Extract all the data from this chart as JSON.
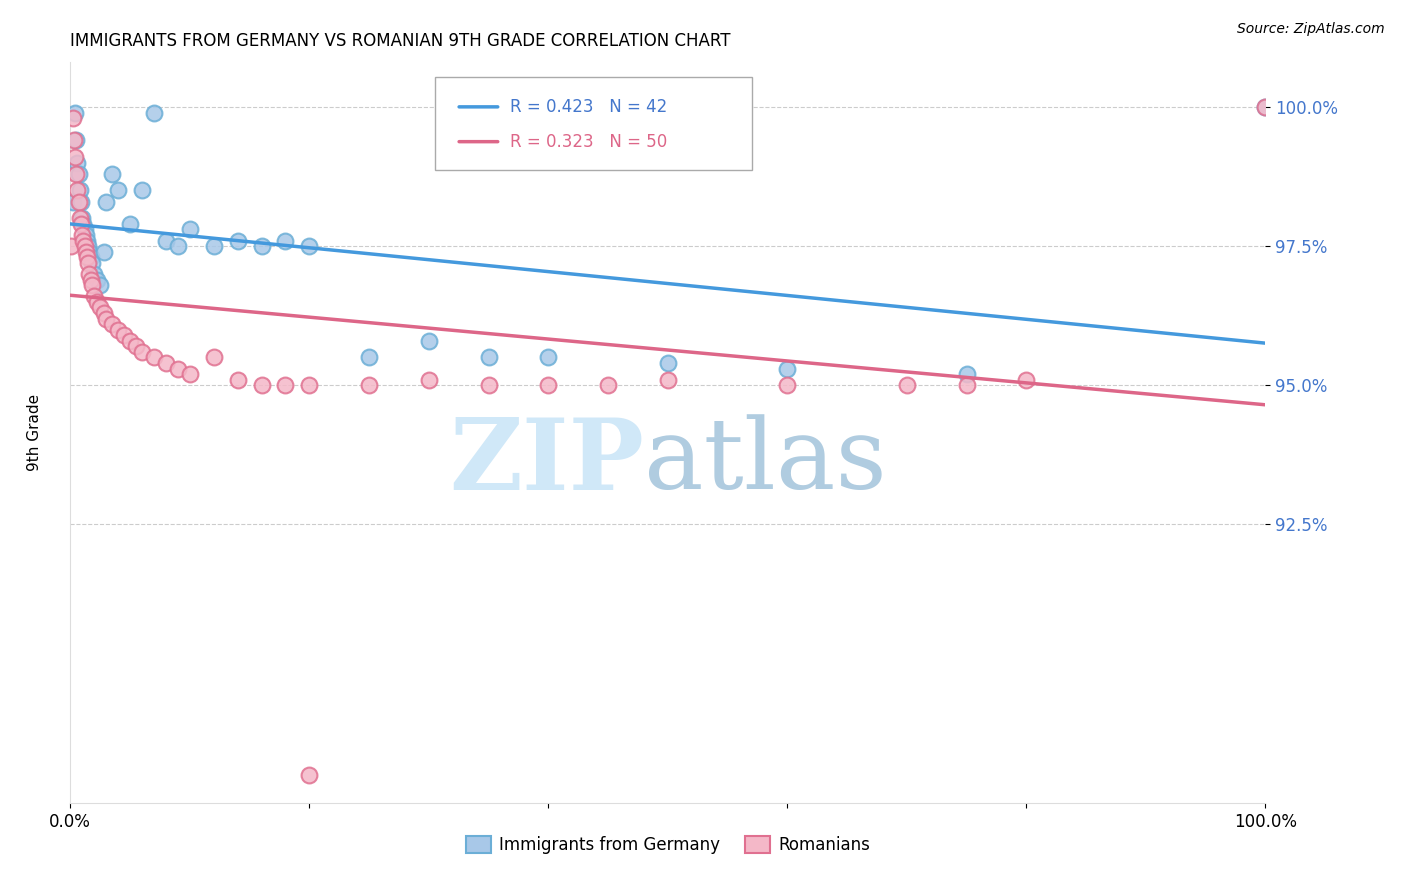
{
  "title": "IMMIGRANTS FROM GERMANY VS ROMANIAN 9TH GRADE CORRELATION CHART",
  "source": "Source: ZipAtlas.com",
  "ylabel": "9th Grade",
  "legend_blue_label": "Immigrants from Germany",
  "legend_pink_label": "Romanians",
  "corr_blue_R": 0.423,
  "corr_blue_N": 42,
  "corr_pink_R": 0.323,
  "corr_pink_N": 50,
  "blue_color": "#a8c8e8",
  "blue_edge_color": "#6baed6",
  "pink_color": "#f4b8c8",
  "pink_edge_color": "#e07090",
  "blue_line_color": "#4499dd",
  "pink_line_color": "#dd6688",
  "xaxis_range": [
    0.0,
    1.0
  ],
  "yaxis_range": [
    0.875,
    1.008
  ],
  "ytick_values": [
    0.925,
    0.95,
    0.975,
    1.0
  ],
  "ytick_labels": [
    "92.5%",
    "95.0%",
    "97.5%",
    "100.0%"
  ],
  "blue_scatter_x": [
    0.002,
    0.004,
    0.005,
    0.006,
    0.007,
    0.008,
    0.009,
    0.01,
    0.011,
    0.012,
    0.013,
    0.014,
    0.015,
    0.016,
    0.017,
    0.018,
    0.02,
    0.022,
    0.025,
    0.028,
    0.03,
    0.035,
    0.04,
    0.05,
    0.06,
    0.07,
    0.08,
    0.09,
    0.1,
    0.12,
    0.14,
    0.16,
    0.18,
    0.2,
    0.25,
    0.3,
    0.35,
    0.4,
    0.5,
    0.6,
    0.75,
    1.0
  ],
  "blue_scatter_y": [
    0.983,
    0.999,
    0.994,
    0.99,
    0.988,
    0.985,
    0.983,
    0.98,
    0.979,
    0.978,
    0.977,
    0.976,
    0.975,
    0.974,
    0.973,
    0.972,
    0.97,
    0.969,
    0.968,
    0.974,
    0.983,
    0.988,
    0.985,
    0.979,
    0.985,
    0.999,
    0.976,
    0.975,
    0.978,
    0.975,
    0.976,
    0.975,
    0.976,
    0.975,
    0.955,
    0.958,
    0.955,
    0.955,
    0.954,
    0.953,
    0.952,
    1.0
  ],
  "pink_scatter_x": [
    0.001,
    0.002,
    0.003,
    0.004,
    0.005,
    0.006,
    0.007,
    0.008,
    0.009,
    0.01,
    0.011,
    0.012,
    0.013,
    0.014,
    0.015,
    0.016,
    0.017,
    0.018,
    0.02,
    0.022,
    0.025,
    0.028,
    0.03,
    0.035,
    0.04,
    0.045,
    0.05,
    0.055,
    0.06,
    0.07,
    0.08,
    0.09,
    0.1,
    0.12,
    0.14,
    0.16,
    0.18,
    0.2,
    0.25,
    0.3,
    0.35,
    0.4,
    0.45,
    0.5,
    0.6,
    0.7,
    0.75,
    0.8,
    0.2,
    1.0
  ],
  "pink_scatter_y": [
    0.975,
    0.998,
    0.994,
    0.991,
    0.988,
    0.985,
    0.983,
    0.98,
    0.979,
    0.977,
    0.976,
    0.975,
    0.974,
    0.973,
    0.972,
    0.97,
    0.969,
    0.968,
    0.966,
    0.965,
    0.964,
    0.963,
    0.962,
    0.961,
    0.96,
    0.959,
    0.958,
    0.957,
    0.956,
    0.955,
    0.954,
    0.953,
    0.952,
    0.955,
    0.951,
    0.95,
    0.95,
    0.95,
    0.95,
    0.951,
    0.95,
    0.95,
    0.95,
    0.951,
    0.95,
    0.95,
    0.95,
    0.951,
    0.88,
    1.0
  ]
}
